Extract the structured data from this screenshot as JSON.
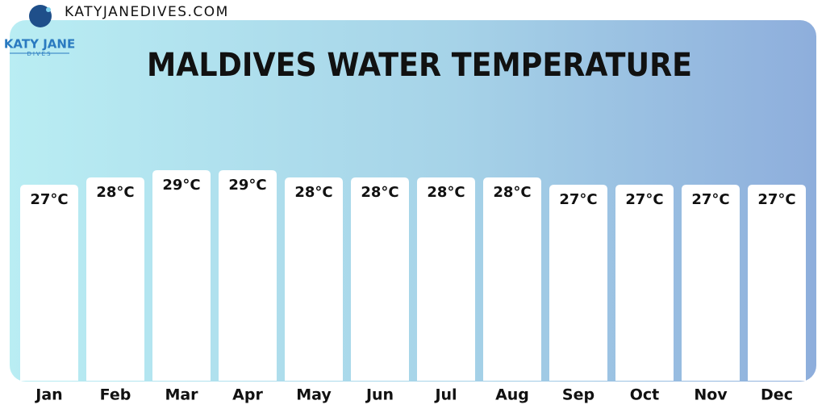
{
  "site": {
    "url": "KATYJANEDIVES.COM",
    "logo_name": "KATY JANE",
    "logo_sub": "DIVES"
  },
  "chart_data": {
    "type": "bar",
    "title": "MALDIVES WATER TEMPERATURE",
    "categories": [
      "Jan",
      "Feb",
      "Mar",
      "Apr",
      "May",
      "Jun",
      "Jul",
      "Aug",
      "Sep",
      "Oct",
      "Nov",
      "Dec"
    ],
    "values": [
      27,
      28,
      29,
      29,
      28,
      28,
      28,
      28,
      27,
      27,
      27,
      27
    ],
    "value_labels": [
      "27°C",
      "28°C",
      "29°C",
      "29°C",
      "28°C",
      "28°C",
      "28°C",
      "28°C",
      "27°C",
      "27°C",
      "27°C",
      "27°C"
    ],
    "color": "#ffffff"
  }
}
